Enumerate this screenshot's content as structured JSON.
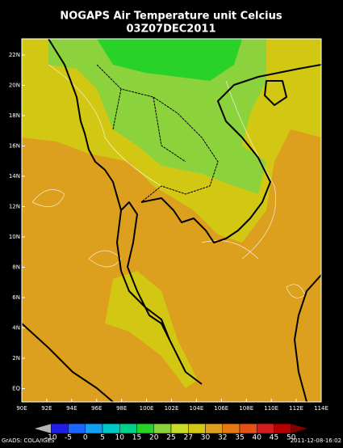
{
  "title": [
    "NOGAPS Air Temperature unit Celcius",
    "03Z07DEC2011"
  ],
  "map": {
    "lat_labels": [
      "22N",
      "20N",
      "18N",
      "16N",
      "14N",
      "12N",
      "10N",
      "8N",
      "6N",
      "4N",
      "2N",
      "EQ"
    ],
    "lon_labels": [
      "90E",
      "92E",
      "94E",
      "96E",
      "98E",
      "100E",
      "102E",
      "104E",
      "106E",
      "108E",
      "110E",
      "112E",
      "114E"
    ]
  },
  "colorbar": {
    "levels": [
      -10,
      -5,
      0,
      5,
      10,
      15,
      20,
      25,
      27,
      30,
      32,
      35,
      40,
      45,
      50
    ],
    "colors": [
      "#b4b4b4",
      "#1e1ee6",
      "#1e64ff",
      "#14a0f0",
      "#00c8c8",
      "#00d28c",
      "#28d228",
      "#8cd23c",
      "#c8dc28",
      "#d2c814",
      "#dca01e",
      "#e67814",
      "#e65014",
      "#d21e1e",
      "#b40000",
      "#820000"
    ]
  },
  "footer": {
    "left": "GrADS: COLA/IGES",
    "right": "2011-12-08-16:02"
  }
}
